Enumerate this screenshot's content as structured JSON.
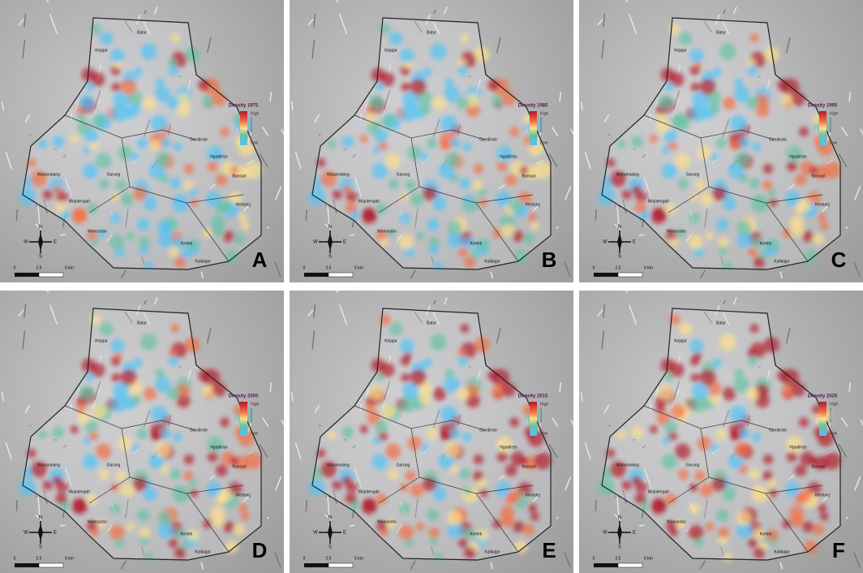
{
  "panels": [
    {
      "letter": "A",
      "legend_title": "Density 1975"
    },
    {
      "letter": "B",
      "legend_title": "Density 1985"
    },
    {
      "letter": "C",
      "legend_title": "Density 1995"
    },
    {
      "letter": "D",
      "legend_title": "Density 2005"
    },
    {
      "letter": "E",
      "legend_title": "Density 2015"
    },
    {
      "letter": "F",
      "legend_title": "Density 2025"
    }
  ],
  "legend": {
    "high": "High",
    "low": "Low"
  },
  "places": [
    "Batur",
    "Kejajar",
    "Garung",
    "Watumalang",
    "Mojotengah",
    "Wonosobo",
    "Kertek",
    "Kalikajar",
    "Kledung",
    "Bansari",
    "Ngadirejo",
    "Candiroto"
  ],
  "compass": {
    "n": "N",
    "s": "S",
    "e": "E",
    "w": "W"
  },
  "scale": {
    "zero": "0",
    "mid": "2.5",
    "end": "5 km"
  }
}
